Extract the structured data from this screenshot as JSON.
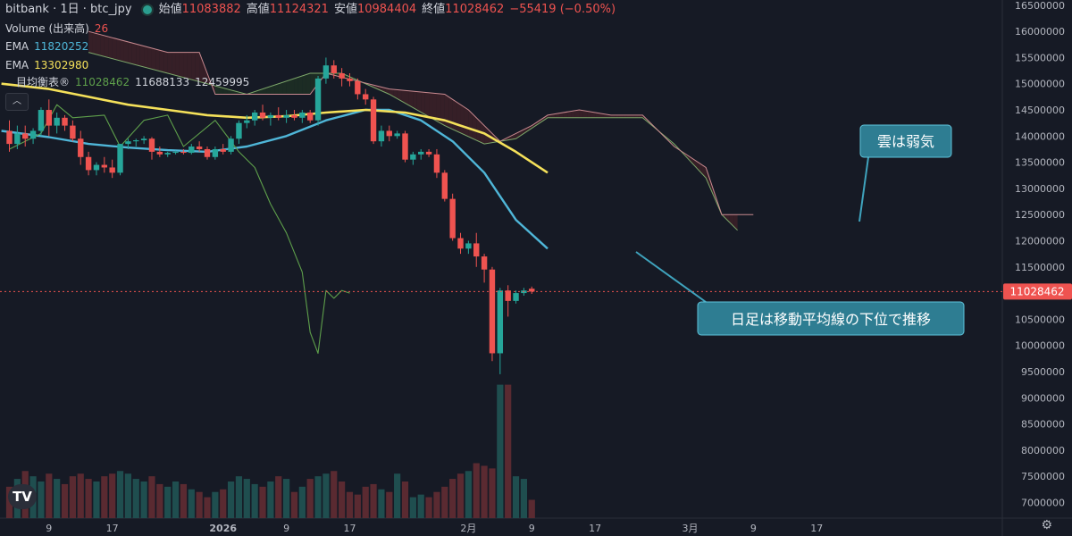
{
  "header": {
    "title": "bitbank · 1日 · btc_jpy",
    "open_label": "始値",
    "open": "11083882",
    "high_label": "高値",
    "high": "11124321",
    "low_label": "安値",
    "low": "10984404",
    "close_label": "終値",
    "close": "11028462",
    "change": "−55419 (−0.50%)"
  },
  "indicators": {
    "volume_label": "Volume (出来高)",
    "volume_value": "26",
    "ema1_label": "EMA",
    "ema1_value": "11820252",
    "ema2_label": "EMA",
    "ema2_value": "13302980",
    "ichimoku_label": "目均衡表®",
    "ichimoku_v1": "11028462",
    "ichimoku_v2": "11688133",
    "ichimoku_v3": "12459995"
  },
  "annotations": [
    {
      "text": "雲は弱気"
    },
    {
      "text": "日足は移動平均線の下位で推移"
    }
  ],
  "colors": {
    "background": "#161a25",
    "up": "#26a69a",
    "down": "#ef5350",
    "ema_fast": "#4fb6d8",
    "ema_slow": "#f5e15a",
    "chikou": "#5e9f4b",
    "cloud_bear": "#3a2028",
    "cloud_bull": "#1d2f25",
    "callout": "#2e7d92"
  },
  "icons": {
    "logo": "tradingview-logo-icon",
    "settings": "gear-icon"
  },
  "chart_data": {
    "type": "candlestick",
    "ylim": [
      6700000,
      16600000
    ],
    "y_ticks": [
      16500000,
      16000000,
      15500000,
      15000000,
      14500000,
      14000000,
      13500000,
      13000000,
      12500000,
      12000000,
      11500000,
      11000000,
      10500000,
      10000000,
      9500000,
      9000000,
      8500000,
      8000000,
      7500000,
      7000000
    ],
    "x_ticks": [
      {
        "label": "9",
        "i": 5
      },
      {
        "label": "17",
        "i": 13
      },
      {
        "label": "2026",
        "i": 27
      },
      {
        "label": "9",
        "i": 35
      },
      {
        "label": "17",
        "i": 43
      },
      {
        "label": "2月",
        "i": 58
      },
      {
        "label": "9",
        "i": 66
      },
      {
        "label": "17",
        "i": 74
      },
      {
        "label": "3月",
        "i": 86
      },
      {
        "label": "9",
        "i": 94
      },
      {
        "label": "17",
        "i": 102
      }
    ],
    "price_label": "11028462",
    "last_price": 11028462,
    "candles": [
      [
        14100000,
        14300000,
        13700000,
        13850000
      ],
      [
        13850000,
        14200000,
        13750000,
        14050000
      ],
      [
        14050000,
        14200000,
        13800000,
        13950000
      ],
      [
        13950000,
        14150000,
        13850000,
        14100000
      ],
      [
        14100000,
        14550000,
        14000000,
        14500000
      ],
      [
        14500000,
        14700000,
        14000000,
        14200000
      ],
      [
        14200000,
        14450000,
        14050000,
        14350000
      ],
      [
        14350000,
        14400000,
        14100000,
        14200000
      ],
      [
        14200000,
        14300000,
        13900000,
        13950000
      ],
      [
        13950000,
        14100000,
        13450000,
        13600000
      ],
      [
        13600000,
        13700000,
        13250000,
        13350000
      ],
      [
        13350000,
        13500000,
        13250000,
        13450000
      ],
      [
        13450000,
        13600000,
        13300000,
        13400000
      ],
      [
        13400000,
        13550000,
        13200000,
        13300000
      ],
      [
        13300000,
        13850000,
        13250000,
        13850000
      ],
      [
        13850000,
        13950000,
        13750000,
        13900000
      ],
      [
        13900000,
        13950000,
        13800000,
        13920000
      ],
      [
        13920000,
        14000000,
        13850000,
        13950000
      ],
      [
        13950000,
        13980000,
        13550000,
        13700000
      ],
      [
        13700000,
        13800000,
        13600000,
        13650000
      ],
      [
        13650000,
        13700000,
        13600000,
        13680000
      ],
      [
        13680000,
        13720000,
        13650000,
        13700000
      ],
      [
        13700000,
        13750000,
        13650000,
        13680000
      ],
      [
        13680000,
        13850000,
        13650000,
        13800000
      ],
      [
        13800000,
        13900000,
        13700000,
        13750000
      ],
      [
        13750000,
        13800000,
        13550000,
        13600000
      ],
      [
        13600000,
        13800000,
        13550000,
        13750000
      ],
      [
        13750000,
        13850000,
        13650000,
        13700000
      ],
      [
        13700000,
        14000000,
        13650000,
        13950000
      ],
      [
        13950000,
        14300000,
        13850000,
        14250000
      ],
      [
        14250000,
        14400000,
        14150000,
        14300000
      ],
      [
        14300000,
        14500000,
        14200000,
        14450000
      ],
      [
        14450000,
        14600000,
        14300000,
        14350000
      ],
      [
        14350000,
        14450000,
        14200000,
        14400000
      ],
      [
        14400000,
        14550000,
        14300000,
        14350000
      ],
      [
        14350000,
        14500000,
        14250000,
        14400000
      ],
      [
        14400000,
        14500000,
        14300000,
        14350000
      ],
      [
        14350000,
        14500000,
        14250000,
        14450000
      ],
      [
        14450000,
        14500000,
        14250000,
        14300000
      ],
      [
        14300000,
        15150000,
        14200000,
        15100000
      ],
      [
        15100000,
        15500000,
        15000000,
        15350000
      ],
      [
        15350000,
        15450000,
        15100000,
        15200000
      ],
      [
        15200000,
        15300000,
        14950000,
        15100000
      ],
      [
        15100000,
        15200000,
        14950000,
        15050000
      ],
      [
        15050000,
        15100000,
        14700000,
        14800000
      ],
      [
        14800000,
        14900000,
        14600000,
        14700000
      ],
      [
        14700000,
        14750000,
        13850000,
        13900000
      ],
      [
        13900000,
        14200000,
        13800000,
        14100000
      ],
      [
        14100000,
        14200000,
        13900000,
        14000000
      ],
      [
        14000000,
        14100000,
        13950000,
        14050000
      ],
      [
        14050000,
        14100000,
        13500000,
        13550000
      ],
      [
        13550000,
        13700000,
        13450000,
        13650000
      ],
      [
        13650000,
        13750000,
        13550000,
        13700000
      ],
      [
        13700000,
        13750000,
        13600000,
        13650000
      ],
      [
        13650000,
        13750000,
        13200000,
        13300000
      ],
      [
        13300000,
        13350000,
        12750000,
        12800000
      ],
      [
        12800000,
        12900000,
        12000000,
        12050000
      ],
      [
        12050000,
        12150000,
        11750000,
        11850000
      ],
      [
        11850000,
        12000000,
        11750000,
        11950000
      ],
      [
        11950000,
        12150000,
        11500000,
        11700000
      ],
      [
        11700000,
        11750000,
        11200000,
        11450000
      ],
      [
        11450000,
        11500000,
        9700000,
        9850000
      ],
      [
        9850000,
        11100000,
        9450000,
        11050000
      ],
      [
        11050000,
        11150000,
        10550000,
        10850000
      ],
      [
        10850000,
        11050000,
        10800000,
        11000000
      ],
      [
        11000000,
        11100000,
        10950000,
        11050000
      ],
      [
        11083882,
        11124321,
        10984404,
        11028462
      ]
    ],
    "volumes": [
      7300000,
      7450000,
      7600000,
      7500000,
      7400000,
      7550000,
      7450000,
      7350000,
      7500000,
      7550000,
      7450000,
      7400000,
      7500000,
      7550000,
      7600000,
      7550000,
      7450000,
      7400000,
      7500000,
      7350000,
      7300000,
      7400000,
      7350000,
      7250000,
      7200000,
      7100000,
      7200000,
      7250000,
      7400000,
      7500000,
      7450000,
      7350000,
      7300000,
      7400000,
      7500000,
      7450000,
      7200000,
      7300000,
      7450000,
      7500000,
      7550000,
      7600000,
      7400000,
      7200000,
      7150000,
      7300000,
      7350000,
      7250000,
      7200000,
      7550000,
      7400000,
      7100000,
      7150000,
      7100000,
      7200000,
      7300000,
      7450000,
      7550000,
      7600000,
      7750000,
      7700000,
      7650000,
      9250000,
      9250000,
      7500000,
      7450000,
      7050000
    ],
    "series": [
      {
        "kind": "ema-fast",
        "points": [
          [
            -1,
            14100000
          ],
          [
            5,
            13980000
          ],
          [
            10,
            13850000
          ],
          [
            15,
            13780000
          ],
          [
            20,
            13730000
          ],
          [
            25,
            13700000
          ],
          [
            30,
            13800000
          ],
          [
            35,
            14000000
          ],
          [
            40,
            14300000
          ],
          [
            45,
            14500000
          ],
          [
            48,
            14500000
          ],
          [
            52,
            14300000
          ],
          [
            56,
            13900000
          ],
          [
            60,
            13300000
          ],
          [
            64,
            12400000
          ],
          [
            68,
            11850000
          ]
        ]
      },
      {
        "kind": "ema-slow",
        "points": [
          [
            -1,
            15000000
          ],
          [
            5,
            14900000
          ],
          [
            10,
            14750000
          ],
          [
            15,
            14600000
          ],
          [
            20,
            14500000
          ],
          [
            25,
            14400000
          ],
          [
            30,
            14350000
          ],
          [
            35,
            14380000
          ],
          [
            40,
            14450000
          ],
          [
            45,
            14500000
          ],
          [
            50,
            14450000
          ],
          [
            55,
            14300000
          ],
          [
            60,
            14050000
          ],
          [
            64,
            13700000
          ],
          [
            68,
            13300000
          ]
        ]
      },
      {
        "kind": "chikou",
        "points": [
          [
            0,
            13750000
          ],
          [
            4,
            14050000
          ],
          [
            6,
            14600000
          ],
          [
            8,
            14350000
          ],
          [
            12,
            14400000
          ],
          [
            14,
            13800000
          ],
          [
            17,
            14300000
          ],
          [
            20,
            14400000
          ],
          [
            22,
            13800000
          ],
          [
            26,
            14300000
          ],
          [
            29,
            13700000
          ],
          [
            31,
            13400000
          ],
          [
            33,
            12700000
          ],
          [
            35,
            12150000
          ],
          [
            37,
            11400000
          ],
          [
            38,
            10250000
          ],
          [
            39,
            9850000
          ],
          [
            40,
            11050000
          ],
          [
            41,
            10900000
          ],
          [
            42,
            11050000
          ],
          [
            43,
            11000000
          ]
        ]
      },
      {
        "kind": "span-a",
        "points": [
          [
            10,
            15600000
          ],
          [
            20,
            15200000
          ],
          [
            30,
            14800000
          ],
          [
            38,
            15200000
          ],
          [
            42,
            15200000
          ],
          [
            48,
            14800000
          ],
          [
            55,
            14200000
          ],
          [
            60,
            13850000
          ],
          [
            64,
            13950000
          ],
          [
            68,
            14350000
          ],
          [
            72,
            14350000
          ],
          [
            76,
            14350000
          ],
          [
            80,
            14350000
          ],
          [
            84,
            13850000
          ],
          [
            88,
            13200000
          ],
          [
            90,
            12500000
          ],
          [
            92,
            12200000
          ]
        ]
      },
      {
        "kind": "span-b",
        "points": [
          [
            10,
            16000000
          ],
          [
            20,
            15600000
          ],
          [
            24,
            15600000
          ],
          [
            26,
            14800000
          ],
          [
            38,
            14800000
          ],
          [
            40,
            15200000
          ],
          [
            48,
            14900000
          ],
          [
            55,
            14800000
          ],
          [
            58,
            14500000
          ],
          [
            62,
            13900000
          ],
          [
            66,
            14200000
          ],
          [
            68,
            14400000
          ],
          [
            72,
            14500000
          ],
          [
            76,
            14400000
          ],
          [
            80,
            14400000
          ],
          [
            84,
            13800000
          ],
          [
            88,
            13400000
          ],
          [
            90,
            12500000
          ],
          [
            94,
            12500000
          ]
        ]
      }
    ]
  }
}
